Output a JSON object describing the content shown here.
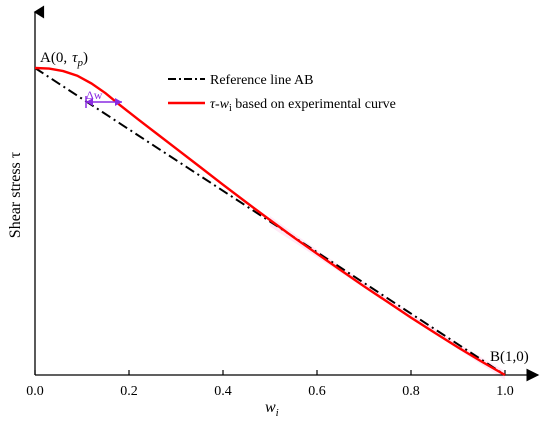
{
  "chart_data": {
    "type": "line",
    "title": "",
    "xlabel": "w",
    "xlabel_sub": "i",
    "ylabel": "Shear stress τ",
    "xlim": [
      0,
      1
    ],
    "ylim": [
      0,
      1
    ],
    "xticks": [
      "0.0",
      "0.2",
      "0.4",
      "0.6",
      "0.8",
      "1.0"
    ],
    "grid": false,
    "legend_position": "top-right",
    "series": [
      {
        "name": "Reference line AB",
        "style": "dash-dot",
        "color": "#000000",
        "x": [
          0,
          1
        ],
        "y": [
          1,
          0
        ]
      },
      {
        "name": "τ-w_i based on experimental curve",
        "legend_main": "τ-w",
        "legend_sub": "i",
        "legend_rest": " based on experimental curve",
        "style": "solid",
        "color": "#ff0000",
        "x": [
          0,
          0.03,
          0.06,
          0.09,
          0.12,
          0.15,
          0.18,
          0.22,
          0.26,
          0.3,
          0.35,
          0.4,
          0.45,
          0.5,
          0.55,
          0.6,
          0.65,
          0.7,
          0.75,
          0.8,
          0.85,
          0.9,
          0.95,
          1.0
        ],
        "y": [
          1.0,
          0.998,
          0.99,
          0.975,
          0.95,
          0.918,
          0.88,
          0.832,
          0.785,
          0.738,
          0.679,
          0.62,
          0.562,
          0.505,
          0.449,
          0.395,
          0.342,
          0.289,
          0.238,
          0.187,
          0.138,
          0.09,
          0.044,
          0.0
        ]
      }
    ],
    "annotations": {
      "point_a_prefix": "A(0,",
      "point_a_tau": "τ",
      "point_a_sub": "p",
      "point_a_suffix": ")",
      "point_b": "B(1,0)",
      "delta_label": "Δw"
    },
    "colors": {
      "delta_arrow": "#8a2be2",
      "overlap_shade": "#ffd6ee"
    }
  }
}
